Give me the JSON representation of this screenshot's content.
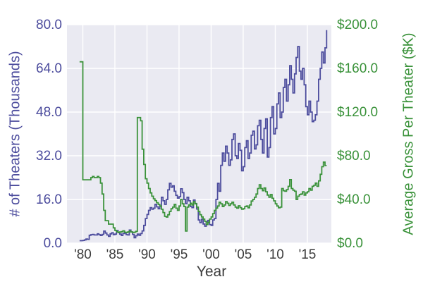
{
  "figure": {
    "xlabel": "Year",
    "ylabel_left": "# of Theaters (Thousands)",
    "ylabel_right": "Average Gross Per Theater ($K)"
  },
  "chart_data": {
    "type": "line",
    "title": "",
    "xlabel": "Year",
    "ylabel_left": "# of Theaters (Thousands)",
    "ylabel_right": "Average Gross Per Theater ($K)",
    "grid": true,
    "plot_bg": "#eaeaf2",
    "grid_color": "#ffffff",
    "x_range": [
      1977.53,
      2018.74
    ],
    "left_range": [
      0,
      80
    ],
    "right_range": [
      0,
      200
    ],
    "x_ticks": [
      {
        "year": 1980,
        "label": "'80"
      },
      {
        "year": 1985,
        "label": "'85"
      },
      {
        "year": 1990,
        "label": "'90"
      },
      {
        "year": 1995,
        "label": "'95"
      },
      {
        "year": 2000,
        "label": "'00"
      },
      {
        "year": 2005,
        "label": "'05"
      },
      {
        "year": 2010,
        "label": "'10"
      },
      {
        "year": 2015,
        "label": "'15"
      }
    ],
    "left_ticks": [
      {
        "value": 0,
        "label": "0.0"
      },
      {
        "value": 16,
        "label": "16.0"
      },
      {
        "value": 32,
        "label": "32.0"
      },
      {
        "value": 48,
        "label": "48.0"
      },
      {
        "value": 64,
        "label": "64.0"
      },
      {
        "value": 80,
        "label": "80.0"
      }
    ],
    "right_ticks": [
      {
        "value": 0,
        "label": "$0.0"
      },
      {
        "value": 40,
        "label": "$40.0"
      },
      {
        "value": 80,
        "label": "$80.0"
      },
      {
        "value": 120,
        "label": "$120.0"
      },
      {
        "value": 160,
        "label": "$160.0"
      },
      {
        "value": 200,
        "label": "$200.0"
      }
    ],
    "series": [
      {
        "name": "number-of-theaters-thousands",
        "axis": "left",
        "color": "#4c4c9d",
        "x_start": 1979.5,
        "x_step": 0.25,
        "values": [
          0.9,
          0.9,
          1.0,
          1.2,
          1.5,
          1.4,
          2.9,
          3.1,
          3.2,
          3.0,
          3.0,
          3.4,
          3.1,
          2.8,
          3.2,
          4.4,
          3.7,
          3.0,
          2.5,
          3.4,
          3.8,
          3.1,
          3.3,
          4.6,
          3.9,
          3.3,
          2.8,
          3.5,
          3.7,
          3.1,
          3.0,
          4.8,
          4.1,
          3.2,
          2.0,
          2.7,
          3.3,
          2.9,
          3.5,
          4.5,
          6.5,
          9.0,
          10.5,
          12.0,
          13.0,
          12.4,
          12.8,
          14.2,
          13.3,
          12.6,
          13.5,
          16.8,
          15.5,
          14.2,
          16.0,
          19.5,
          21.9,
          20.5,
          21.0,
          19.0,
          17.5,
          16.5,
          17.0,
          19.9,
          18.5,
          16.0,
          14.5,
          16.8,
          15.5,
          13.4,
          13.0,
          15.8,
          14.5,
          12.5,
          8.5,
          7.5,
          8.8,
          7.0,
          6.2,
          7.8,
          8.3,
          6.8,
          6.5,
          8.5,
          9.0,
          16.0,
          21.9,
          19.0,
          28.5,
          33.0,
          30.0,
          35.5,
          33.0,
          28.5,
          30.5,
          38.0,
          40.0,
          32.0,
          31.0,
          36.5,
          34.0,
          26.5,
          28.0,
          35.0,
          37.5,
          31.0,
          33.0,
          39.5,
          41.0,
          34.5,
          36.0,
          43.0,
          45.0,
          38.0,
          33.0,
          42.0,
          45.5,
          31.5,
          35.0,
          46.0,
          50.0,
          40.0,
          42.0,
          51.0,
          55.0,
          46.0,
          48.0,
          57.0,
          60.0,
          52.0,
          58.0,
          65.0,
          60.0,
          55.0,
          62.0,
          68.0,
          72.0,
          63.0,
          60.0,
          64.0,
          58.0,
          50.0,
          47.0,
          52.0,
          48.0,
          44.5,
          45.0,
          47.0,
          52.0,
          60.0,
          64.0,
          70.0,
          66.0,
          71.5,
          78.0
        ]
      },
      {
        "name": "average-gross-per-theater-k",
        "axis": "right",
        "color": "#3a923a",
        "x_start": 1979.5,
        "x_step": 0.25,
        "values": [
          166,
          166,
          58,
          58,
          58,
          58,
          58,
          60,
          61,
          60,
          60,
          61,
          60,
          55,
          45,
          30,
          20.6,
          20.6,
          17.4,
          17.4,
          17.4,
          14,
          11.6,
          10.5,
          9.7,
          10.2,
          10.5,
          11.3,
          10.0,
          9.7,
          10.3,
          11.0,
          10.2,
          9.8,
          10.0,
          10.8,
          115,
          115,
          112,
          86,
          72,
          59,
          55,
          50,
          46,
          43,
          40.6,
          39,
          37,
          35.5,
          34,
          31,
          28,
          24.5,
          23.9,
          26,
          29,
          31.5,
          33,
          35.5,
          32,
          30,
          34,
          40,
          36,
          33.5,
          11,
          33,
          35,
          36.5,
          35,
          38,
          36,
          33,
          29,
          26,
          24,
          22,
          20,
          17,
          19,
          22,
          24,
          27,
          30,
          32,
          34,
          37.5,
          36,
          33.5,
          35,
          38,
          36.5,
          34.5,
          36,
          37.5,
          35,
          33,
          32,
          34.2,
          32.5,
          31,
          31.5,
          33.5,
          34,
          32.3,
          35,
          38.5,
          40,
          42,
          45,
          50,
          53.5,
          50,
          48,
          50.5,
          47,
          44,
          42,
          44.5,
          41,
          38.7,
          36,
          34,
          32.3,
          33,
          50,
          48,
          47.5,
          49,
          52,
          58.1,
          50,
          48.5,
          47.5,
          40,
          43,
          44.5,
          45,
          47,
          44,
          46,
          47,
          50,
          48.5,
          52,
          53,
          55,
          52,
          57,
          63,
          70,
          74.2,
          71,
          71
        ]
      }
    ]
  }
}
